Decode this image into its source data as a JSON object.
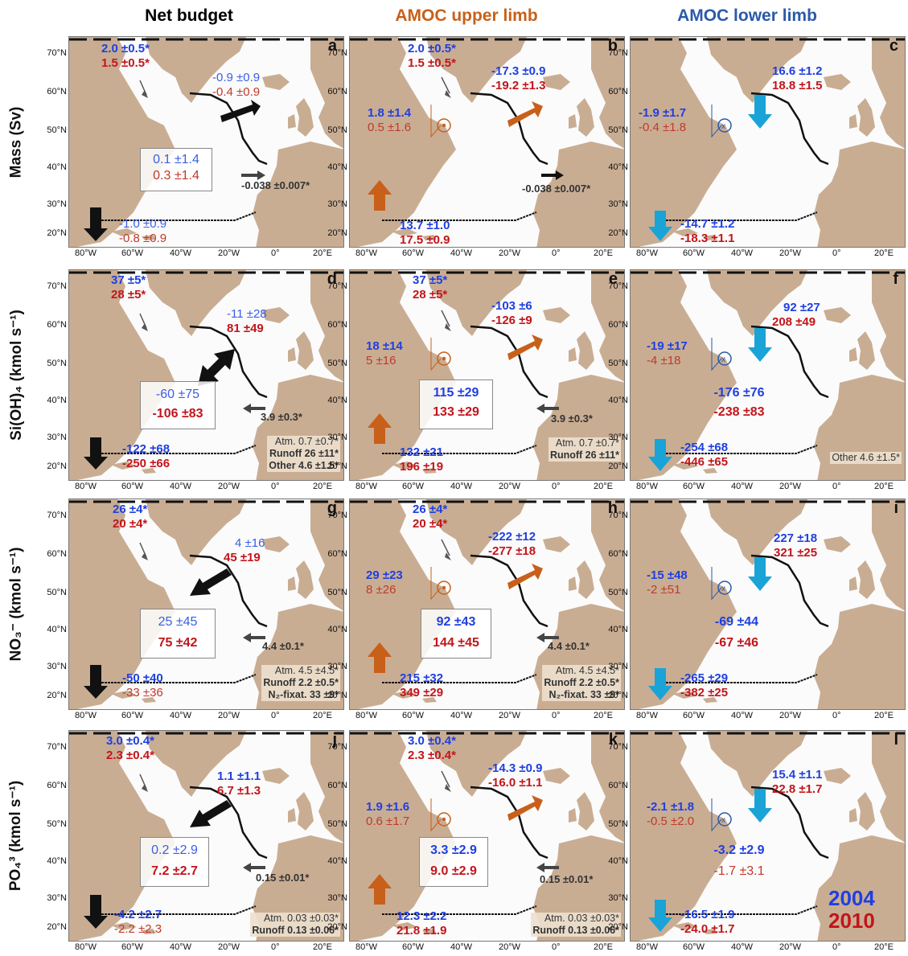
{
  "columns": [
    {
      "title": "Net budget",
      "color": "#000000"
    },
    {
      "title": "AMOC upper limb",
      "color": "#c8601a"
    },
    {
      "title": "AMOC lower limb",
      "color": "#2a5aa8"
    }
  ],
  "rows": [
    {
      "label": "Mass (Sv)"
    },
    {
      "label": "Si(OH)₄ (kmol s⁻¹)"
    },
    {
      "label": "NO₃⁻ (kmol s⁻¹)"
    },
    {
      "label": "PO₄³ (kmol s⁻¹)"
    }
  ],
  "lat_ticks": [
    "70°N",
    "60°N",
    "50°N",
    "40°N",
    "30°N",
    "20°N"
  ],
  "lon_ticks": [
    "80°W",
    "60°W",
    "40°W",
    "20°W",
    "0°",
    "20°E"
  ],
  "legend": {
    "year1": "2004",
    "year2": "2010",
    "year1_color": "#1f3fe0",
    "year2_color": "#c2151b"
  },
  "panels": {
    "a": {
      "label": "a",
      "north_2004": "2.0 ±0.5*",
      "north_2010": "1.5 ±0.5*",
      "ovide_2004": "-0.9 ±0.9",
      "ovide_2010": "-0.4 ±0.9",
      "box_2004": "0.1 ±1.4",
      "box_2010": "0.3 ±1.4",
      "gib": "-0.038 ±0.007*",
      "south_2004": "-1.0 ±0.9",
      "south_2010": "-0.8 ±0.9"
    },
    "b": {
      "label": "b",
      "north_2004": "2.0 ±0.5*",
      "north_2010": "1.5 ±0.5*",
      "ovide_2004": "-17.3 ±0.9",
      "ovide_2010": "-19.2 ±1.3",
      "side_2004": "1.8 ±1.4",
      "side_2010": "0.5 ±1.6",
      "gib": "-0.038 ±0.007*",
      "south_2004": "13.7 ±1.0",
      "south_2010": "17.5 ±0.9"
    },
    "c": {
      "label": "c",
      "ovide_2004": "16.6 ±1.2",
      "ovide_2010": "18.8 ±1.5",
      "side_2004": "-1.9 ±1.7",
      "side_2010": "-0.4 ±1.8",
      "south_2004": "-14.7 ±1.2",
      "south_2010": "-18.3 ±1.1"
    },
    "d": {
      "label": "d",
      "north_2004": "37 ±5*",
      "north_2010": "28 ±5*",
      "ovide_2004": "-11 ±28",
      "ovide_2010": "81 ±49",
      "box_2004": "-60 ±75",
      "box_2010": "-106 ±83",
      "gib": "3.9 ±0.3*",
      "south_2004": "-122 ±68",
      "south_2010": "-250 ±66",
      "src": [
        "Atm. 0.7 ±0.7*",
        "Runoff 26 ±11*",
        "Other 4.6 ±1.5*"
      ]
    },
    "e": {
      "label": "e",
      "north_2004": "37 ±5*",
      "north_2010": "28 ±5*",
      "ovide_2004": "-103 ±6",
      "ovide_2010": "-126 ±9",
      "side_2004": "18 ±14",
      "side_2010": "5 ±16",
      "box_2004": "115 ±29",
      "box_2010": "133 ±29",
      "gib": "3.9 ±0.3*",
      "south_2004": "132 ±21",
      "south_2010": "196 ±19",
      "src": [
        "Atm. 0.7 ±0.7*",
        "Runoff 26 ±11*"
      ]
    },
    "f": {
      "label": "f",
      "ovide_2004": "92 ±27",
      "ovide_2010": "208 ±49",
      "side_2004": "-19 ±17",
      "side_2010": "-4 ±18",
      "box_2004": "-176 ±76",
      "box_2010": "-238 ±83",
      "south_2004": "-254 ±68",
      "south_2010": "-446 ±65",
      "src": [
        "Other 4.6 ±1.5*"
      ]
    },
    "g": {
      "label": "g",
      "north_2004": "26 ±4*",
      "north_2010": "20 ±4*",
      "ovide_2004": "4 ±16",
      "ovide_2010": "45 ±19",
      "box_2004": "25 ±45",
      "box_2010": "75 ±42",
      "gib": "4.4 ±0.1*",
      "south_2004": "-50 ±40",
      "south_2010": "-33 ±36",
      "src": [
        "Atm. 4.5 ±4.5*",
        "Runoff 2.2 ±0.5*",
        "N₂-fixat. 33 ±9*"
      ]
    },
    "h": {
      "label": "h",
      "north_2004": "26 ±4*",
      "north_2010": "20 ±4*",
      "ovide_2004": "-222 ±12",
      "ovide_2010": "-277 ±18",
      "side_2004": "29 ±23",
      "side_2010": "8 ±26",
      "box_2004": "92 ±43",
      "box_2010": "144 ±45",
      "gib": "4.4 ±0.1*",
      "south_2004": "215 ±32",
      "south_2010": "349 ±29",
      "src": [
        "Atm. 4.5 ±4.5*",
        "Runoff 2.2 ±0.5*",
        "N₂-fixat. 33 ±9*"
      ]
    },
    "i": {
      "label": "i",
      "ovide_2004": "227 ±18",
      "ovide_2010": "321 ±25",
      "side_2004": "-15 ±48",
      "side_2010": "-2 ±51",
      "box_2004": "-69 ±44",
      "box_2010": "-67 ±46",
      "south_2004": "-265 ±29",
      "south_2010": "-382 ±25"
    },
    "j": {
      "label": "j",
      "north_2004": "3.0 ±0.4*",
      "north_2010": "2.3 ±0.4*",
      "ovide_2004": "1.1 ±1.1",
      "ovide_2010": "6.7 ±1.3",
      "box_2004": "0.2 ±2.9",
      "box_2010": "7.2 ±2.7",
      "gib": "0.15 ±0.01*",
      "south_2004": "-4.2 ±2.7",
      "south_2010": "-2.2 ±2.3",
      "src": [
        "Atm. 0.03 ±0.03*",
        "Runoff 0.13 ±0.06*"
      ]
    },
    "k": {
      "label": "k",
      "north_2004": "3.0 ±0.4*",
      "north_2010": "2.3 ±0.4*",
      "ovide_2004": "-14.3 ±0.9",
      "ovide_2010": "-16.0 ±1.1",
      "side_2004": "1.9 ±1.6",
      "side_2010": "0.6 ±1.7",
      "box_2004": "3.3 ±2.9",
      "box_2010": "9.0 ±2.9",
      "gib": "0.15 ±0.01*",
      "south_2004": "12.3 ±2.2",
      "south_2010": "21.8 ±1.9",
      "src": [
        "Atm. 0.03 ±0.03*",
        "Runoff 0.13 ±0.06*"
      ]
    },
    "l": {
      "label": "l",
      "ovide_2004": "15.4 ±1.1",
      "ovide_2010": "22.8 ±1.7",
      "side_2004": "-2.1 ±1.8",
      "side_2010": "-0.5 ±2.0",
      "box_2004": "-3.2 ±2.9",
      "box_2010": "-1.7 ±3.1",
      "south_2004": "-16.5 ±1.9",
      "south_2010": "-24.0 ±1.7"
    }
  }
}
